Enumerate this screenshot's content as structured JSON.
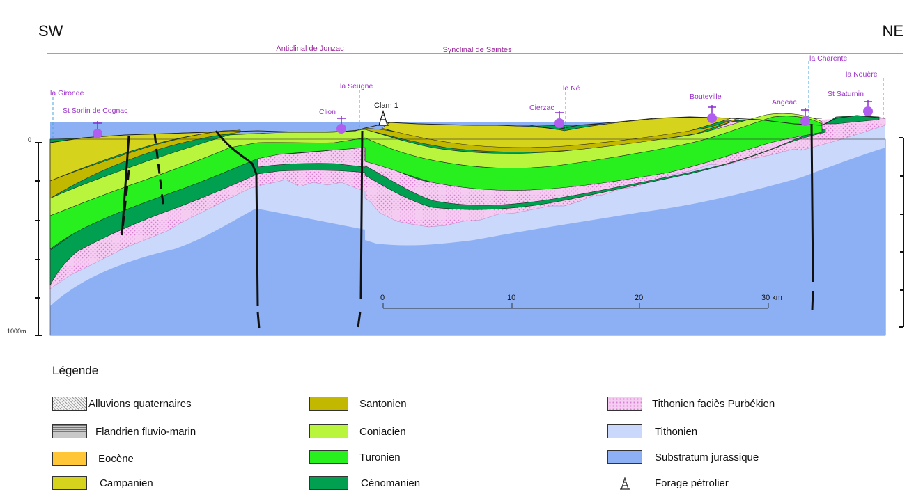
{
  "orientation": {
    "left": "SW",
    "right": "NE"
  },
  "structures": {
    "anticline": "Anticlinal de Jonzac",
    "syncline": "Synclinal de Saintes"
  },
  "places": {
    "la_gironde": "la Gironde",
    "st_sorlin": "St Sorlin de Cognac",
    "la_seugne": "la Seugne",
    "clion": "Clion",
    "clam": "Clam 1",
    "le_ne": "le Né",
    "cierzac": "Cierzac",
    "bouteville": "Bouteville",
    "angeac": "Angeac",
    "la_charente": "la Charente",
    "la_nouere": "la Nouère",
    "st_saturnin": "St Saturnin"
  },
  "depth_axis": {
    "top_label": "0",
    "bottom_label": "1000m"
  },
  "scale_bar": {
    "labels": [
      "0",
      "10",
      "20",
      "30 km"
    ]
  },
  "legend": {
    "title": "Légende",
    "items": [
      {
        "label": "Alluvions quaternaires",
        "color": "#f4f4f4",
        "pattern": "dots"
      },
      {
        "label": "Flandrien fluvio-marin",
        "color": "#b5b5b5",
        "pattern": "lines"
      },
      {
        "label": "Eocène",
        "color": "#ffc637",
        "pattern": "none"
      },
      {
        "label": "Campanien",
        "color": "#d6d31c",
        "pattern": "none"
      },
      {
        "label": "Santonien",
        "color": "#c3b800",
        "pattern": "none"
      },
      {
        "label": "Coniacien",
        "color": "#b9f53c",
        "pattern": "none"
      },
      {
        "label": "Turonien",
        "color": "#28f01e",
        "pattern": "none"
      },
      {
        "label": "Cénomanien",
        "color": "#00a050",
        "pattern": "none"
      },
      {
        "label": "Tithonien faciès Purbékien",
        "color": "#f2c3ee",
        "pattern": "pink"
      },
      {
        "label": "Tithonien",
        "color": "#c9d8fb",
        "pattern": "none"
      },
      {
        "label": "Substratum jurassique",
        "color": "#8db0f5",
        "pattern": "none"
      },
      {
        "label": "Forage pétrolier",
        "color": "#ffffff",
        "pattern": "derrick"
      }
    ]
  }
}
